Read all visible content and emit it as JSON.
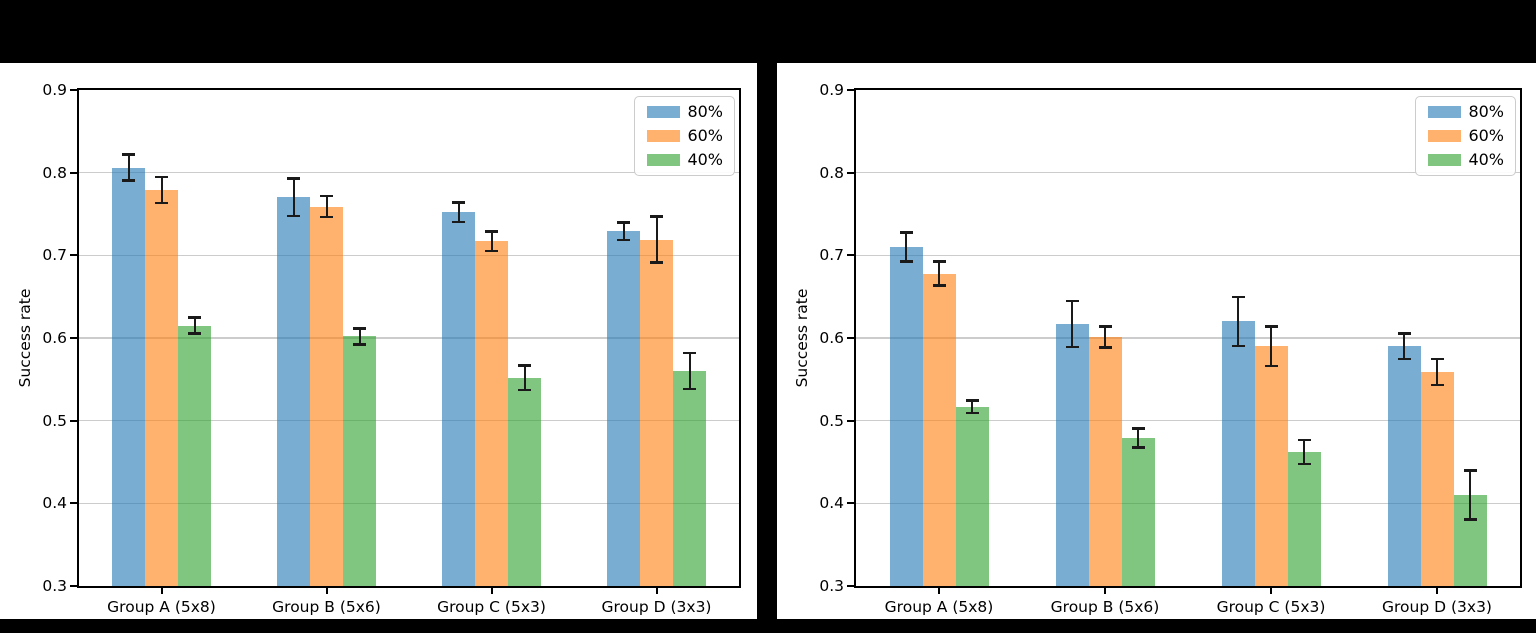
{
  "figure": {
    "background": "#ffffff",
    "frame_bars_color": "#000000",
    "grid_color": "#cccccc",
    "errorbar_color": "#1a1a1a"
  },
  "chart_data": [
    {
      "type": "bar",
      "title": "",
      "xlabel": "",
      "ylabel": "Success rate",
      "ylim": [
        0.3,
        0.9
      ],
      "yticks": [
        0.3,
        0.4,
        0.5,
        0.6,
        0.7,
        0.8,
        0.9
      ],
      "grid": "horizontal",
      "legend_position": "upper-right",
      "categories": [
        "Group A (5x8)",
        "Group B (5x6)",
        "Group C (5x3)",
        "Group D (3x3)"
      ],
      "series": [
        {
          "name": "80%",
          "base_color": "#1f77b4",
          "alpha": 0.6,
          "values": [
            0.806,
            0.77,
            0.752,
            0.729
          ],
          "errors": [
            0.016,
            0.023,
            0.012,
            0.011
          ]
        },
        {
          "name": "60%",
          "base_color": "#ff7f0e",
          "alpha": 0.6,
          "values": [
            0.779,
            0.759,
            0.717,
            0.719
          ],
          "errors": [
            0.016,
            0.013,
            0.012,
            0.028
          ]
        },
        {
          "name": "40%",
          "base_color": "#2ca02c",
          "alpha": 0.6,
          "values": [
            0.615,
            0.602,
            0.552,
            0.56
          ],
          "errors": [
            0.01,
            0.01,
            0.015,
            0.022
          ]
        }
      ]
    },
    {
      "type": "bar",
      "title": "",
      "xlabel": "",
      "ylabel": "Success rate",
      "ylim": [
        0.3,
        0.9
      ],
      "yticks": [
        0.3,
        0.4,
        0.5,
        0.6,
        0.7,
        0.8,
        0.9
      ],
      "grid": "horizontal",
      "legend_position": "upper-right",
      "categories": [
        "Group A (5x8)",
        "Group B (5x6)",
        "Group C (5x3)",
        "Group D (3x3)"
      ],
      "series": [
        {
          "name": "80%",
          "base_color": "#1f77b4",
          "alpha": 0.6,
          "values": [
            0.71,
            0.617,
            0.62,
            0.59
          ],
          "errors": [
            0.018,
            0.028,
            0.03,
            0.016
          ]
        },
        {
          "name": "60%",
          "base_color": "#ff7f0e",
          "alpha": 0.6,
          "values": [
            0.678,
            0.601,
            0.59,
            0.559
          ],
          "errors": [
            0.015,
            0.013,
            0.024,
            0.016
          ]
        },
        {
          "name": "40%",
          "base_color": "#2ca02c",
          "alpha": 0.6,
          "values": [
            0.517,
            0.479,
            0.462,
            0.41
          ],
          "errors": [
            0.008,
            0.012,
            0.015,
            0.03
          ]
        }
      ]
    }
  ]
}
